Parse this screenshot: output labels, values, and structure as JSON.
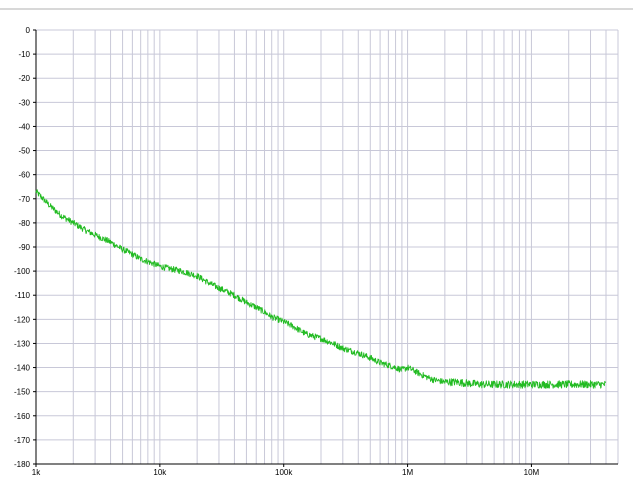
{
  "chart_data": {
    "type": "line",
    "title": "",
    "xlabel": "",
    "ylabel": "",
    "x_scale": "log",
    "xlim": [
      1000,
      50000000
    ],
    "ylim": [
      -180,
      0
    ],
    "grid": true,
    "legend": "none",
    "x_ticks": [
      {
        "value": 1000,
        "label": "1k"
      },
      {
        "value": 10000,
        "label": "10k"
      },
      {
        "value": 100000,
        "label": "100k"
      },
      {
        "value": 1000000,
        "label": "1M"
      },
      {
        "value": 10000000,
        "label": "10M"
      }
    ],
    "y_ticks": [
      0,
      -10,
      -20,
      -30,
      -40,
      -50,
      -60,
      -70,
      -80,
      -90,
      -100,
      -110,
      -120,
      -130,
      -140,
      -150,
      -160,
      -170,
      -180
    ],
    "series": [
      {
        "color": "#22bb22",
        "x": [
          1000,
          1300,
          1600,
          2000,
          2500,
          3000,
          4000,
          5000,
          6000,
          7000,
          8000,
          10000,
          12000,
          15000,
          20000,
          25000,
          30000,
          40000,
          50000,
          60000,
          70000,
          80000,
          100000,
          120000,
          150000,
          200000,
          250000,
          300000,
          400000,
          500000,
          600000,
          700000,
          800000,
          900000,
          1000000,
          1100000,
          1300000,
          1600000,
          2000000,
          2500000,
          3000000,
          4000000,
          5000000,
          7000000,
          10000000,
          15000000,
          20000000,
          30000000,
          40000000
        ],
        "y": [
          -67,
          -73,
          -77,
          -80,
          -83,
          -85,
          -88,
          -91,
          -93,
          -95,
          -96,
          -98,
          -99,
          -100,
          -102,
          -105,
          -107,
          -110,
          -113,
          -115,
          -117,
          -119,
          -121,
          -123,
          -126,
          -128,
          -130,
          -132,
          -134,
          -136,
          -138,
          -139,
          -140,
          -141,
          -140,
          -141,
          -143,
          -145,
          -146,
          -146,
          -146.5,
          -147,
          -147,
          -147,
          -147,
          -147,
          -147,
          -147,
          -147
        ]
      }
    ],
    "grid_color": "#c8c8d8",
    "axis_color": "#000000"
  }
}
